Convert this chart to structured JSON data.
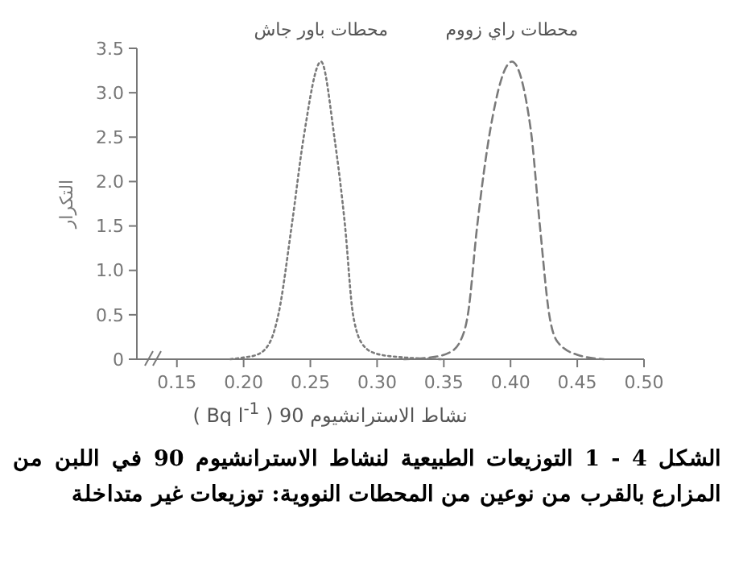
{
  "chart_data": {
    "type": "line",
    "title": "الشكل 4 - 1 التوزيعات الطبيعية لنشاط الاسترانشيوم 90 في اللبن من المزارع بالقرب من نوعين من المحطات النووية: توزيعات غير متداخلة",
    "xlabel": "نشاط الاسترانشيوم 90 ( Bq l$^{-1}$ )",
    "ylabel": "التكرار",
    "xlim": [
      0.12,
      0.5
    ],
    "xticks": [
      0.15,
      {
        "value": 0.2,
        "label": "0.20"
      },
      0.25,
      {
        "value": 0.3,
        "label": "0.30"
      },
      0.35,
      {
        "value": 0.4,
        "label": "0.40"
      },
      0.45,
      {
        "value": 0.5,
        "label": "0.50"
      }
    ],
    "ylim": [
      0,
      3.5
    ],
    "yticks": [
      0,
      0.5,
      {
        "value": 1,
        "label": "1.0"
      },
      1.5,
      {
        "value": 2,
        "label": "2.0"
      },
      2.5,
      {
        "value": 3,
        "label": "3.0"
      },
      3.5
    ],
    "grid": false,
    "marker": "none",
    "series": [
      {
        "name": "محطات باور جاش",
        "color": "#7a7a7a",
        "line_style": "dotted",
        "x": [
          0.19,
          0.2,
          0.21,
          0.22,
          0.226,
          0.236,
          0.245,
          0.258,
          0.268,
          0.276,
          0.282,
          0.29,
          0.3,
          0.32,
          0.35
        ],
        "values": [
          0,
          0.02,
          0.05,
          0.2,
          0.5,
          1.5,
          2.5,
          3.35,
          2.5,
          1.5,
          0.5,
          0.15,
          0.06,
          0.02,
          0
        ]
      },
      {
        "name": "محطات راي زووم",
        "color": "#7a7a7a",
        "line_style": "dashed",
        "x": [
          0.32,
          0.34,
          0.355,
          0.365,
          0.368,
          0.375,
          0.385,
          0.401,
          0.415,
          0.422,
          0.429,
          0.435,
          0.45,
          0.47
        ],
        "values": [
          0,
          0.02,
          0.08,
          0.3,
          0.5,
          1.5,
          2.6,
          3.35,
          2.6,
          1.5,
          0.5,
          0.2,
          0.05,
          0
        ]
      }
    ]
  }
}
